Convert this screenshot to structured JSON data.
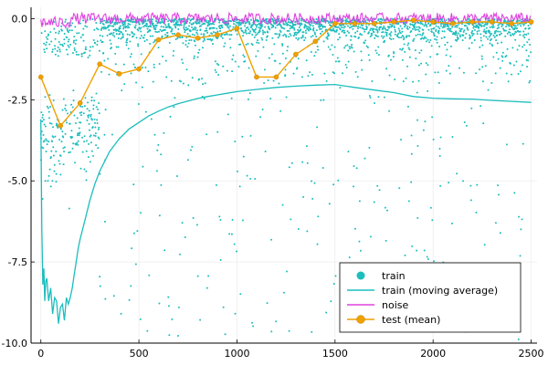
{
  "chart_data": {
    "type": "scatter",
    "title": "",
    "xlabel": "",
    "ylabel": "",
    "xlim": [
      -50,
      2530
    ],
    "ylim": [
      -10.0,
      0.35
    ],
    "x_ticks": [
      0,
      500,
      1000,
      1500,
      2000,
      2500
    ],
    "x_tick_labels": [
      "0",
      "500",
      "1000",
      "1500",
      "2000",
      "2500"
    ],
    "y_ticks": [
      0.0,
      -2.5,
      -5.0,
      -7.5,
      -10.0
    ],
    "y_tick_labels": [
      "0.0",
      "-2.5",
      "-5.0",
      "-7.5",
      "-10.0"
    ],
    "grid": true,
    "legend_position": "bottom-right",
    "colors": {
      "train": "#1cbdbd",
      "noise": "#e040e0",
      "test": "#f0a000"
    },
    "legend": [
      {
        "label": "train",
        "marker": "dot",
        "color": "#1cbdbd"
      },
      {
        "label": "train (moving average)",
        "marker": "line",
        "color": "#1cbdbd"
      },
      {
        "label": "noise",
        "marker": "line",
        "color": "#e040e0"
      },
      {
        "label": "test (mean)",
        "marker": "line-dot",
        "color": "#f0a000"
      }
    ],
    "series": [
      {
        "name": "train (moving average)",
        "type": "line",
        "x": [
          0,
          5,
          10,
          15,
          20,
          25,
          30,
          40,
          50,
          60,
          70,
          80,
          90,
          100,
          110,
          120,
          130,
          140,
          150,
          160,
          170,
          180,
          190,
          200,
          225,
          250,
          275,
          300,
          350,
          400,
          450,
          500,
          550,
          600,
          650,
          700,
          750,
          800,
          850,
          900,
          950,
          1000,
          1100,
          1200,
          1300,
          1400,
          1500,
          1600,
          1700,
          1800,
          1900,
          2000,
          2100,
          2200,
          2300,
          2400,
          2500
        ],
        "y": [
          -3.1,
          -6.5,
          -8.2,
          -7.7,
          -8.7,
          -8.1,
          -8.0,
          -8.7,
          -8.3,
          -9.1,
          -8.6,
          -8.7,
          -9.4,
          -8.9,
          -8.8,
          -9.3,
          -8.6,
          -8.8,
          -8.6,
          -8.3,
          -7.9,
          -7.5,
          -7.1,
          -6.8,
          -6.2,
          -5.6,
          -5.1,
          -4.7,
          -4.1,
          -3.7,
          -3.4,
          -3.2,
          -3.0,
          -2.85,
          -2.72,
          -2.62,
          -2.54,
          -2.46,
          -2.4,
          -2.35,
          -2.3,
          -2.25,
          -2.18,
          -2.12,
          -2.08,
          -2.05,
          -2.03,
          -2.12,
          -2.2,
          -2.28,
          -2.4,
          -2.45,
          -2.47,
          -2.48,
          -2.52,
          -2.55,
          -2.58
        ]
      },
      {
        "name": "test (mean)",
        "type": "line-dot",
        "x": [
          0,
          100,
          200,
          300,
          400,
          500,
          600,
          700,
          800,
          900,
          1000,
          1100,
          1200,
          1300,
          1400,
          1500,
          1600,
          1700,
          1800,
          1900,
          2000,
          2100,
          2200,
          2300,
          2400,
          2500
        ],
        "y": [
          -1.8,
          -3.3,
          -2.6,
          -1.4,
          -1.7,
          -1.55,
          -0.65,
          -0.5,
          -0.6,
          -0.5,
          -0.3,
          -1.8,
          -1.8,
          -1.1,
          -0.7,
          -0.15,
          -0.15,
          -0.15,
          -0.1,
          -0.05,
          -0.1,
          -0.15,
          -0.1,
          -0.1,
          -0.15,
          -0.1
        ]
      }
    ]
  }
}
